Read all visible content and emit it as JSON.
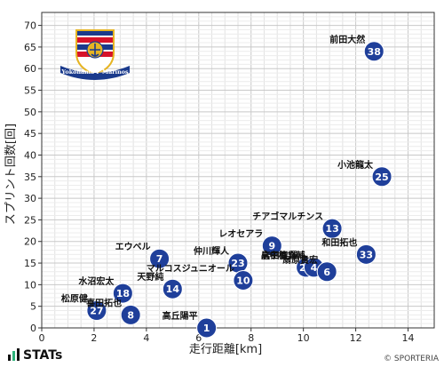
{
  "chart_data": {
    "type": "scatter",
    "xlabel": "走行距離[km]",
    "ylabel": "スプリント回数[回]",
    "xlim": [
      0,
      15
    ],
    "ylim": [
      0,
      73
    ],
    "xticks": [
      0,
      2,
      4,
      6,
      8,
      10,
      12,
      14
    ],
    "yticks": [
      0,
      5,
      10,
      15,
      20,
      25,
      30,
      35,
      40,
      45,
      50,
      55,
      60,
      65,
      70
    ],
    "grid": true,
    "points": [
      {
        "number": "38",
        "name": "前田大然",
        "x": 12.7,
        "y": 64
      },
      {
        "number": "25",
        "name": "小池龍太",
        "x": 13.0,
        "y": 35
      },
      {
        "number": "13",
        "name": "チアゴマルチンス",
        "x": 11.1,
        "y": 23
      },
      {
        "number": "9",
        "name": "レオセアラ",
        "x": 8.8,
        "y": 19
      },
      {
        "number": "33",
        "name": "和田拓也",
        "x": 12.4,
        "y": 17
      },
      {
        "number": "7",
        "name": "エウベル",
        "x": 4.5,
        "y": 16
      },
      {
        "number": "23",
        "name": "仲川輝人",
        "x": 7.5,
        "y": 15
      },
      {
        "number": "24",
        "name": "岩田智輝",
        "x": 10.1,
        "y": 14
      },
      {
        "number": "4",
        "name": "畠中槙之輔",
        "x": 10.4,
        "y": 14
      },
      {
        "number": "6",
        "name": "扇原貴宏",
        "x": 10.9,
        "y": 13
      },
      {
        "number": "10",
        "name": "マルコスジュニオール",
        "x": 7.7,
        "y": 11
      },
      {
        "number": "18",
        "name": "水沼宏太",
        "x": 3.1,
        "y": 8
      },
      {
        "number": "14",
        "name": "天野純",
        "x": 5.0,
        "y": 9
      },
      {
        "number": "27",
        "name": "松原健",
        "x": 2.1,
        "y": 4
      },
      {
        "number": "8",
        "name": "喜田拓也",
        "x": 3.4,
        "y": 3
      },
      {
        "number": "1",
        "name": "高丘陽平",
        "x": 6.3,
        "y": 0
      }
    ],
    "point_color": "#1f3f9a"
  },
  "badge": {
    "text": "Yokohama F·Marinos",
    "colors": {
      "blue": "#1a3a8c",
      "red": "#d7132a",
      "gold": "#e6b422"
    }
  },
  "footer": {
    "brand": "STATs",
    "copyright": "© SPORTERIA"
  }
}
